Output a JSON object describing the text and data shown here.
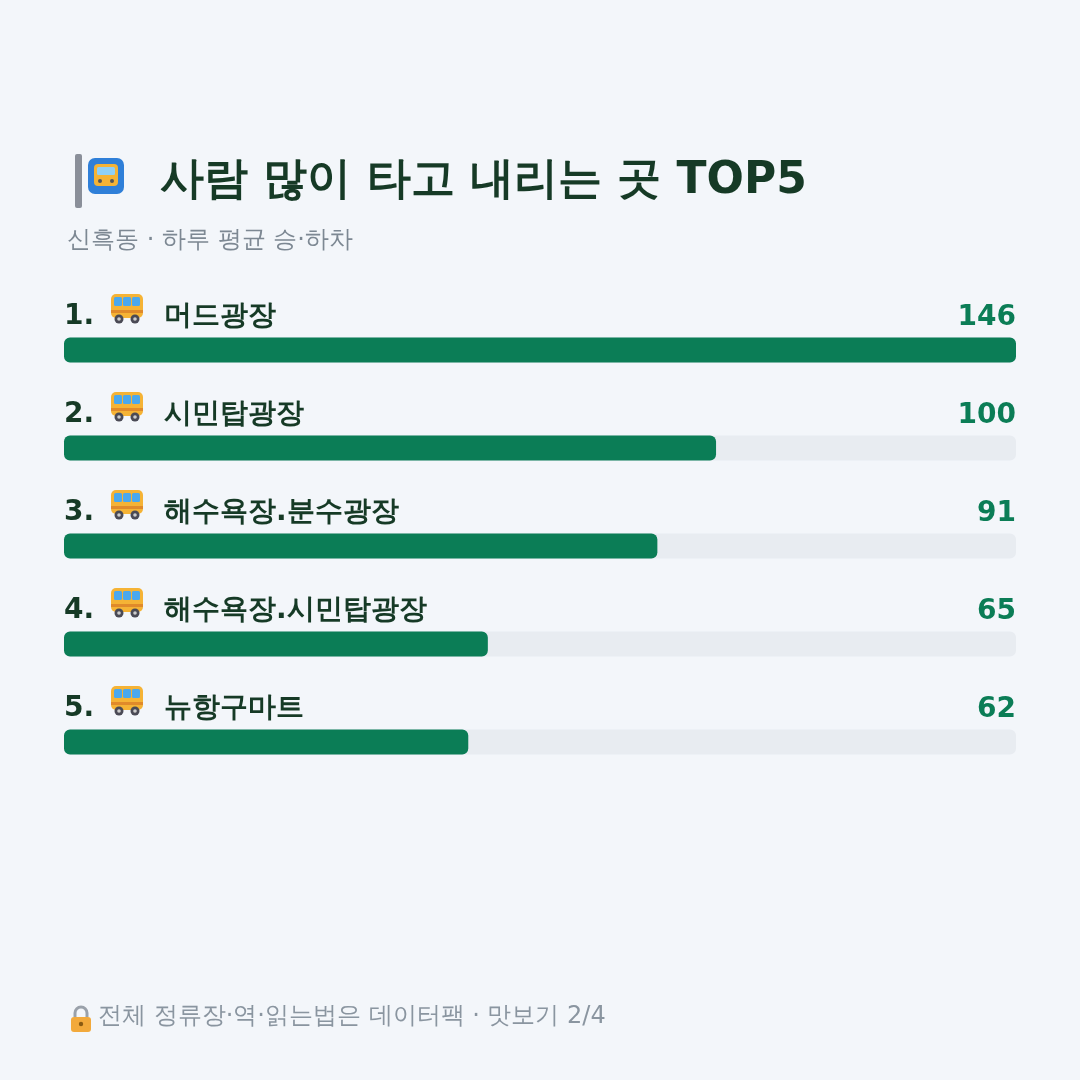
{
  "chart_data": {
    "type": "bar",
    "orientation": "horizontal",
    "title": "사람 많이 타고 내리는 곳 TOP5",
    "subtitle": "신흑동 · 하루 평균 승·하차",
    "categories": [
      "1. 머드광장",
      "2. 시민탑광장",
      "3. 해수욕장.분수광장",
      "4. 해수욕장.시민탑광장",
      "5. 뉴항구마트"
    ],
    "values": [
      146,
      100,
      91,
      65,
      62
    ],
    "color": "#0b7d56",
    "data_labels": true,
    "grid": false,
    "tick_labels": "y",
    "annotations": [
      "전체 정류장·역·읽는법은 데이터팩 · 맛보기 2/4"
    ]
  }
}
